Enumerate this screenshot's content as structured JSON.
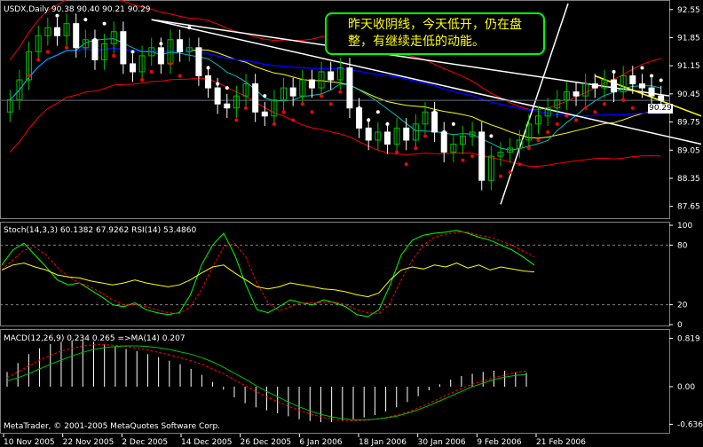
{
  "window": {
    "symbol_line": "USDX,Daily  90.38 90.40 90.21 90.29",
    "price_tag": "90.29",
    "annotation": "昨天收阴线，今天低开，仍在盘整，有继续走低的动能。",
    "copyright": "MetaTrader, © 2001-2005 MetaQuotes Software Corp."
  },
  "chart_data": [
    {
      "type": "candlestick",
      "title": "USDX,Daily  90.38 90.40 90.21 90.29",
      "y_ticks": [
        "92.55",
        "91.85",
        "91.15",
        "90.45",
        "89.75",
        "89.05",
        "88.35",
        "87.65"
      ],
      "ylim": [
        87.4,
        92.7
      ],
      "x_ticks": [
        "10 Nov 2005",
        "22 Nov 2005",
        "2 Dec 2005",
        "14 Dec 2005",
        "26 Dec 2005",
        "6 Jan 2006",
        "18 Jan 2006",
        "30 Jan 2006",
        "9 Feb 2006",
        "21 Feb 2006"
      ],
      "close": [
        90.3,
        90.8,
        91.5,
        91.9,
        92.1,
        91.9,
        92.2,
        91.6,
        91.8,
        91.3,
        91.7,
        92.0,
        91.2,
        91.0,
        91.4,
        91.6,
        91.2,
        91.8,
        91.5,
        91.6,
        90.9,
        90.6,
        90.2,
        90.1,
        90.4,
        90.7,
        90.0,
        89.9,
        90.3,
        90.6,
        90.4,
        90.8,
        90.6,
        91.0,
        90.8,
        91.1,
        90.1,
        89.6,
        89.3,
        89.5,
        89.2,
        89.6,
        89.3,
        89.7,
        90.0,
        89.5,
        89.0,
        89.2,
        89.4,
        89.5,
        88.3,
        88.9,
        89.0,
        89.1,
        89.3,
        89.7,
        89.9,
        90.1,
        90.3,
        90.5,
        90.4,
        90.7,
        90.6,
        90.8,
        90.5,
        90.9,
        90.7,
        90.6,
        90.4,
        90.29
      ],
      "annotations": [
        "昨天收阴线，今天低开，仍在盘整，有继续走低的动能。"
      ]
    },
    {
      "type": "line",
      "title": "Stoch(14,3,3) 60.1382 67.9262  RSI(14) 53.4860",
      "y_ticks": [
        "100",
        "80",
        "20",
        "0"
      ],
      "ylim": [
        0,
        100
      ],
      "series": [
        {
          "name": "Stoch %K",
          "values": [
            60,
            75,
            82,
            70,
            58,
            45,
            40,
            42,
            35,
            28,
            20,
            18,
            22,
            15,
            12,
            10,
            12,
            30,
            60,
            80,
            92,
            70,
            40,
            15,
            12,
            18,
            25,
            22,
            20,
            25,
            22,
            18,
            10,
            8,
            15,
            40,
            70,
            85,
            90,
            92,
            93,
            95,
            92,
            88,
            85,
            80,
            75,
            68,
            60
          ]
        },
        {
          "name": "Stoch %D",
          "values": [
            55,
            65,
            75,
            78,
            70,
            58,
            48,
            42,
            38,
            32,
            25,
            20,
            20,
            18,
            15,
            12,
            11,
            18,
            35,
            58,
            78,
            82,
            68,
            42,
            22,
            14,
            18,
            22,
            22,
            22,
            23,
            20,
            15,
            12,
            11,
            22,
            45,
            65,
            80,
            88,
            91,
            93,
            93,
            90,
            88,
            84,
            80,
            74,
            68
          ]
        },
        {
          "name": "RSI",
          "values": [
            55,
            60,
            62,
            58,
            55,
            50,
            48,
            47,
            44,
            42,
            40,
            42,
            45,
            42,
            40,
            38,
            40,
            45,
            52,
            58,
            60,
            52,
            45,
            38,
            36,
            38,
            42,
            40,
            38,
            36,
            35,
            33,
            30,
            28,
            32,
            45,
            55,
            58,
            56,
            60,
            58,
            62,
            57,
            60,
            55,
            58,
            56,
            54,
            53
          ]
        }
      ]
    },
    {
      "type": "bar",
      "title": "MACD(12,26,9) 0.234 0.265  =>MA(14) 0.207",
      "y_ticks": [
        "0.819",
        "0.00",
        "-0.636"
      ],
      "ylim": [
        -0.75,
        0.9
      ],
      "series": [
        {
          "name": "MACD",
          "values": [
            0.25,
            0.4,
            0.55,
            0.65,
            0.72,
            0.76,
            0.78,
            0.78,
            0.76,
            0.72,
            0.68,
            0.64,
            0.6,
            0.55,
            0.5,
            0.44,
            0.38,
            0.3,
            0.2,
            0.08,
            -0.05,
            -0.18,
            -0.28,
            -0.35,
            -0.4,
            -0.45,
            -0.5,
            -0.55,
            -0.58,
            -0.6,
            -0.6,
            -0.58,
            -0.55,
            -0.52,
            -0.48,
            -0.42,
            -0.35,
            -0.26,
            -0.16,
            -0.06,
            0.04,
            0.12,
            0.18,
            0.22,
            0.25,
            0.27,
            0.27,
            0.25,
            0.234
          ]
        },
        {
          "name": "Signal",
          "values": [
            0.15,
            0.25,
            0.35,
            0.45,
            0.53,
            0.6,
            0.65,
            0.69,
            0.71,
            0.71,
            0.7,
            0.68,
            0.65,
            0.62,
            0.58,
            0.54,
            0.49,
            0.44,
            0.38,
            0.3,
            0.22,
            0.12,
            0.02,
            -0.08,
            -0.17,
            -0.25,
            -0.33,
            -0.4,
            -0.46,
            -0.51,
            -0.55,
            -0.57,
            -0.58,
            -0.57,
            -0.55,
            -0.52,
            -0.48,
            -0.43,
            -0.36,
            -0.28,
            -0.2,
            -0.11,
            -0.03,
            0.04,
            0.1,
            0.15,
            0.2,
            0.24,
            0.265
          ]
        },
        {
          "name": "MA(14)",
          "values": [
            0.1,
            0.15,
            0.22,
            0.3,
            0.38,
            0.45,
            0.52,
            0.58,
            0.63,
            0.66,
            0.68,
            0.69,
            0.69,
            0.68,
            0.66,
            0.63,
            0.59,
            0.55,
            0.49,
            0.42,
            0.33,
            0.23,
            0.13,
            0.02,
            -0.08,
            -0.17,
            -0.26,
            -0.34,
            -0.41,
            -0.47,
            -0.51,
            -0.54,
            -0.56,
            -0.56,
            -0.55,
            -0.53,
            -0.5,
            -0.45,
            -0.39,
            -0.32,
            -0.24,
            -0.16,
            -0.08,
            0.0,
            0.06,
            0.12,
            0.16,
            0.19,
            0.207
          ]
        }
      ]
    }
  ],
  "colors": {
    "background": "#000000",
    "bull": "#00c000",
    "bear": "#ffffff",
    "grid": "#808080",
    "upper_band": "#ff0000",
    "lower_band": "#ff0000",
    "ma_yellow": "#ffff00",
    "ma_blue": "#0000ff",
    "ma_cyan": "#00c0c0",
    "ma_green": "#00a000",
    "stoch_k": "#00ff00",
    "stoch_d": "#ff0000",
    "rsi": "#ffff00",
    "annotation_border": "#00ff00",
    "annotation_text": "#ffff00"
  }
}
